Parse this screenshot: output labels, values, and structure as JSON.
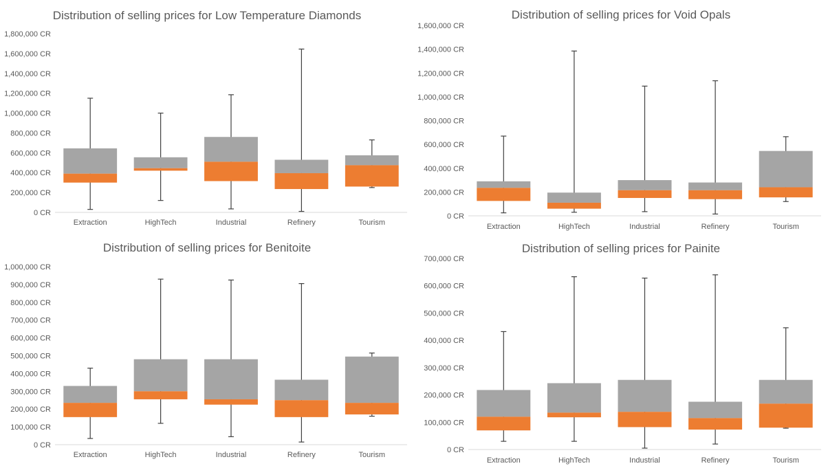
{
  "colors": {
    "upper_box": "#a5a5a5",
    "lower_box": "#ed7d31",
    "whisker": "#404040",
    "axis": "#d9d9d9",
    "text": "#595959"
  },
  "chart_data": [
    {
      "type": "box",
      "title": "Distribution of selling prices for Low Temperature Diamonds",
      "categories": [
        "Extraction",
        "HighTech",
        "Industrial",
        "Refinery",
        "Tourism"
      ],
      "ylim": [
        0,
        1800000
      ],
      "y_ticks": [
        "0 CR",
        "200,000 CR",
        "400,000 CR",
        "600,000 CR",
        "800,000 CR",
        "1,000,000 CR",
        "1,200,000 CR",
        "1,400,000 CR",
        "1,600,000 CR",
        "1,800,000 CR"
      ],
      "boxes": [
        {
          "min": 30000,
          "q1": 300000,
          "median": 390000,
          "q3": 645000,
          "max": 1150000
        },
        {
          "min": 120000,
          "q1": 420000,
          "median": 445000,
          "q3": 555000,
          "max": 1000000
        },
        {
          "min": 35000,
          "q1": 315000,
          "median": 510000,
          "q3": 760000,
          "max": 1185000
        },
        {
          "min": 10000,
          "q1": 235000,
          "median": 395000,
          "q3": 530000,
          "max": 1645000
        },
        {
          "min": 250000,
          "q1": 260000,
          "median": 475000,
          "q3": 575000,
          "max": 730000
        }
      ]
    },
    {
      "type": "box",
      "title": "Distribution of selling prices for Void Opals",
      "categories": [
        "Extraction",
        "HighTech",
        "Industrial",
        "Refinery",
        "Tourism"
      ],
      "ylim": [
        0,
        1600000
      ],
      "y_ticks": [
        "0 CR",
        "200,000 CR",
        "400,000 CR",
        "600,000 CR",
        "800,000 CR",
        "1,000,000 CR",
        "1,200,000 CR",
        "1,400,000 CR",
        "1,600,000 CR"
      ],
      "boxes": [
        {
          "min": 25000,
          "q1": 125000,
          "median": 235000,
          "q3": 290000,
          "max": 670000
        },
        {
          "min": 30000,
          "q1": 60000,
          "median": 110000,
          "q3": 195000,
          "max": 1385000
        },
        {
          "min": 35000,
          "q1": 150000,
          "median": 215000,
          "q3": 300000,
          "max": 1090000
        },
        {
          "min": 15000,
          "q1": 140000,
          "median": 215000,
          "q3": 280000,
          "max": 1135000
        },
        {
          "min": 120000,
          "q1": 155000,
          "median": 240000,
          "q3": 545000,
          "max": 665000
        }
      ]
    },
    {
      "type": "box",
      "title": "Distribution of selling prices for Benitoite",
      "categories": [
        "Extraction",
        "HighTech",
        "Industrial",
        "Refinery",
        "Tourism"
      ],
      "ylim": [
        0,
        1000000
      ],
      "y_ticks": [
        "0 CR",
        "100,000 CR",
        "200,000 CR",
        "300,000 CR",
        "400,000 CR",
        "500,000 CR",
        "600,000 CR",
        "700,000 CR",
        "800,000 CR",
        "900,000 CR",
        "1,000,000 CR"
      ],
      "boxes": [
        {
          "min": 35000,
          "q1": 155000,
          "median": 235000,
          "q3": 330000,
          "max": 430000
        },
        {
          "min": 120000,
          "q1": 255000,
          "median": 300000,
          "q3": 480000,
          "max": 930000
        },
        {
          "min": 45000,
          "q1": 225000,
          "median": 255000,
          "q3": 480000,
          "max": 925000
        },
        {
          "min": 15000,
          "q1": 155000,
          "median": 250000,
          "q3": 365000,
          "max": 905000
        },
        {
          "min": 160000,
          "q1": 170000,
          "median": 235000,
          "q3": 495000,
          "max": 515000
        }
      ]
    },
    {
      "type": "box",
      "title": "Distribution of selling prices for Painite",
      "categories": [
        "Extraction",
        "HighTech",
        "Industrial",
        "Refinery",
        "Tourism"
      ],
      "ylim": [
        0,
        700000
      ],
      "y_ticks": [
        "0 CR",
        "100,000 CR",
        "200,000 CR",
        "300,000 CR",
        "400,000 CR",
        "500,000 CR",
        "600,000 CR",
        "700,000 CR"
      ],
      "boxes": [
        {
          "min": 30000,
          "q1": 70000,
          "median": 120000,
          "q3": 218000,
          "max": 432000
        },
        {
          "min": 30000,
          "q1": 118000,
          "median": 135000,
          "q3": 243000,
          "max": 633000
        },
        {
          "min": 5000,
          "q1": 82000,
          "median": 138000,
          "q3": 255000,
          "max": 628000
        },
        {
          "min": 20000,
          "q1": 73000,
          "median": 115000,
          "q3": 175000,
          "max": 640000
        },
        {
          "min": 78000,
          "q1": 80000,
          "median": 168000,
          "q3": 255000,
          "max": 446000
        }
      ]
    }
  ]
}
